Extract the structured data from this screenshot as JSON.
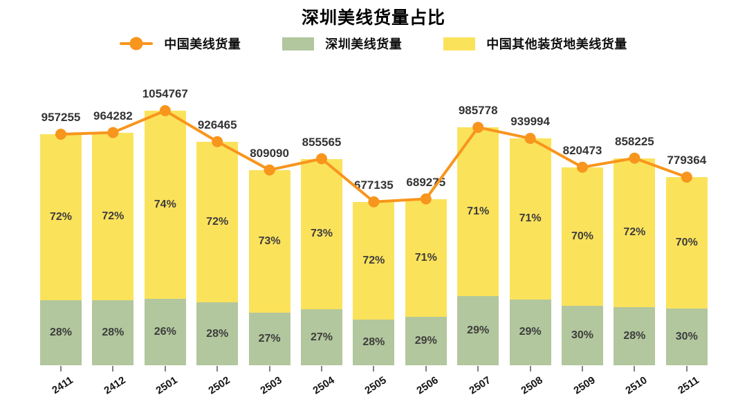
{
  "chart_data": {
    "type": "stacked-bar-with-line",
    "title": "深圳美线货量占比",
    "categories": [
      "2411",
      "2412",
      "2501",
      "2502",
      "2503",
      "2504",
      "2505",
      "2506",
      "2507",
      "2508",
      "2509",
      "2510",
      "2511"
    ],
    "series": [
      {
        "name": "中国美线货量",
        "type": "line",
        "color": "#F8951D",
        "values": [
          957255,
          964282,
          1054767,
          926465,
          809090,
          855565,
          677135,
          689275,
          985778,
          939994,
          820473,
          858225,
          779364
        ]
      },
      {
        "name": "深圳美线货量",
        "type": "bar",
        "color": "#B2C79D",
        "unit": "percent",
        "values": [
          28,
          28,
          26,
          28,
          27,
          27,
          28,
          29,
          29,
          29,
          30,
          28,
          30
        ]
      },
      {
        "name": "中国其他装货地美线货量",
        "type": "bar",
        "color": "#FBE25B",
        "unit": "percent",
        "values": [
          72,
          72,
          74,
          72,
          73,
          73,
          72,
          71,
          71,
          71,
          70,
          72,
          70
        ]
      }
    ],
    "legend_position": "top",
    "y_axis": "hidden",
    "grid": false,
    "bar_label_color": "#3d3d3d",
    "value_label_color": "#333333"
  }
}
